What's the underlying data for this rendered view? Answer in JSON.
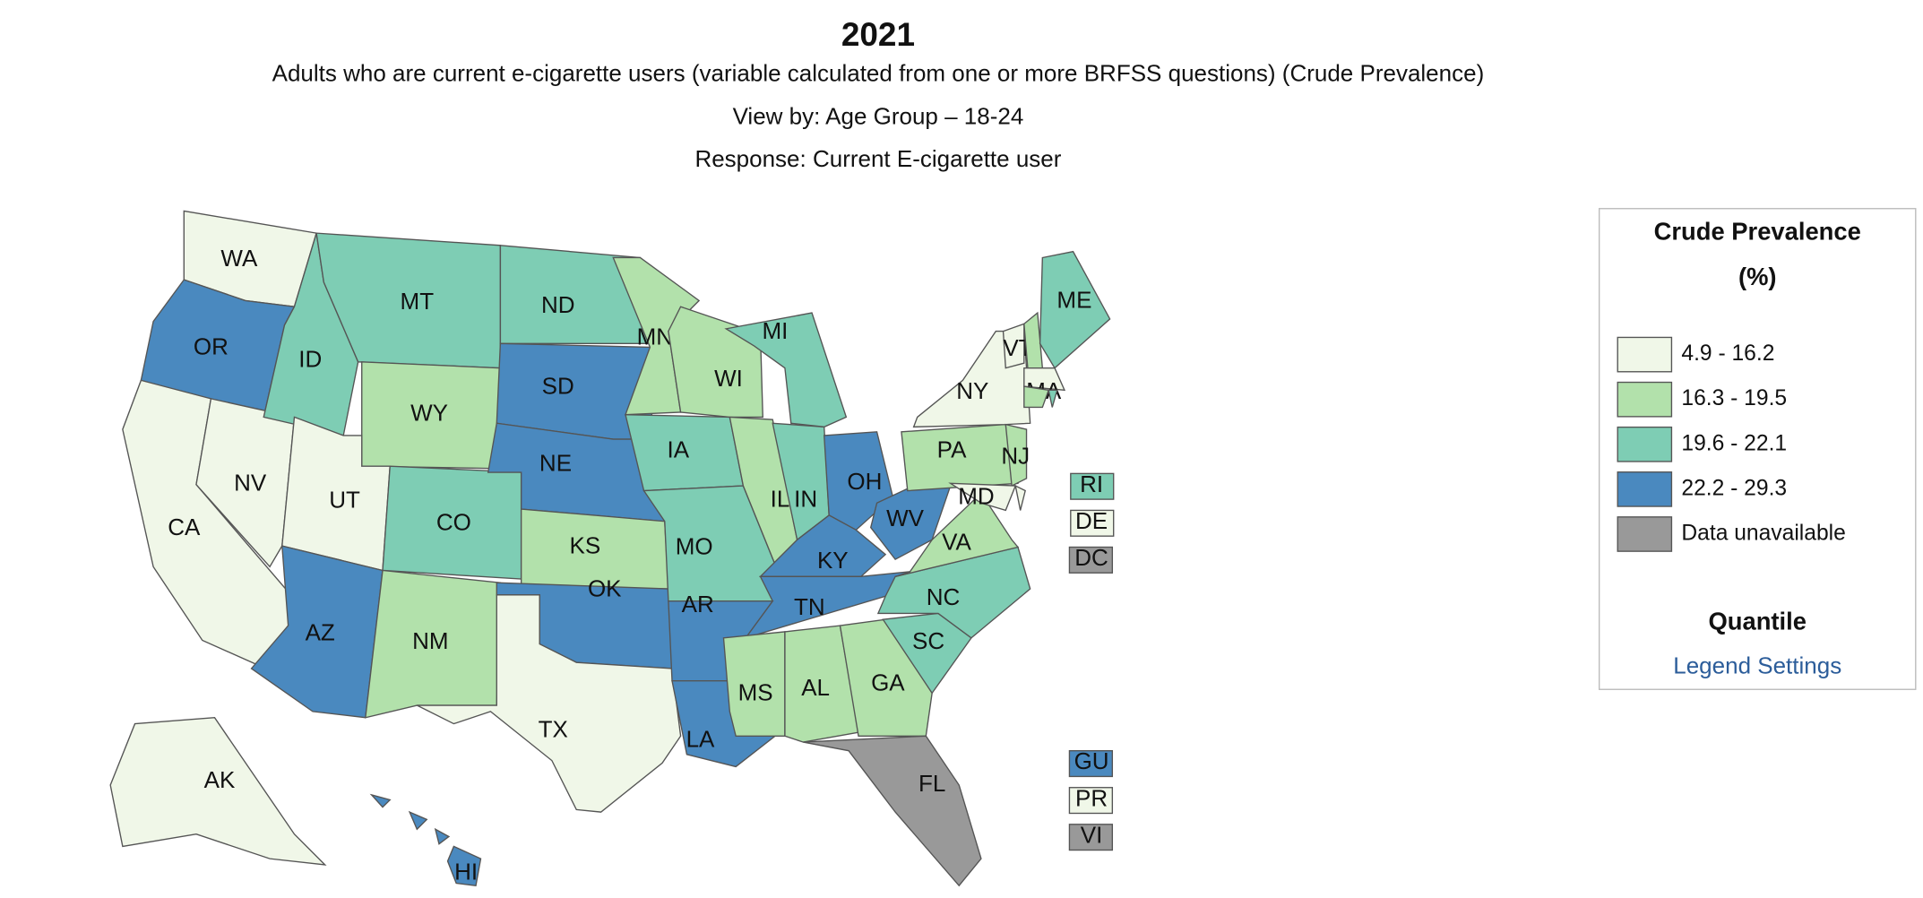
{
  "header": {
    "title": "2021",
    "subtitle": "Adults who are current e-cigarette users (variable calculated from one or more BRFSS questions) (Crude Prevalence)",
    "view_by": "View by: Age Group – 18-24",
    "response": "Response: Current E-cigarette user"
  },
  "map": {
    "states": [
      {
        "abbr": "WA",
        "class": 0
      },
      {
        "abbr": "OR",
        "class": 3
      },
      {
        "abbr": "CA",
        "class": 0
      },
      {
        "abbr": "NV",
        "class": 0
      },
      {
        "abbr": "ID",
        "class": 2
      },
      {
        "abbr": "MT",
        "class": 2
      },
      {
        "abbr": "WY",
        "class": 1
      },
      {
        "abbr": "UT",
        "class": 0
      },
      {
        "abbr": "CO",
        "class": 2
      },
      {
        "abbr": "AZ",
        "class": 3
      },
      {
        "abbr": "NM",
        "class": 1
      },
      {
        "abbr": "ND",
        "class": 2
      },
      {
        "abbr": "SD",
        "class": 3
      },
      {
        "abbr": "NE",
        "class": 3
      },
      {
        "abbr": "KS",
        "class": 1
      },
      {
        "abbr": "OK",
        "class": 3
      },
      {
        "abbr": "TX",
        "class": 0
      },
      {
        "abbr": "MN",
        "class": 1
      },
      {
        "abbr": "IA",
        "class": 2
      },
      {
        "abbr": "MO",
        "class": 2
      },
      {
        "abbr": "WI",
        "class": 1
      },
      {
        "abbr": "IL",
        "class": 1
      },
      {
        "abbr": "IN",
        "class": 2
      },
      {
        "abbr": "MI",
        "class": 2
      },
      {
        "abbr": "OH",
        "class": 3
      },
      {
        "abbr": "KY",
        "class": 3
      },
      {
        "abbr": "TN",
        "class": 3
      },
      {
        "abbr": "AR",
        "class": 3
      },
      {
        "abbr": "LA",
        "class": 3
      },
      {
        "abbr": "MS",
        "class": 1
      },
      {
        "abbr": "AL",
        "class": 1
      },
      {
        "abbr": "GA",
        "class": 1
      },
      {
        "abbr": "FL",
        "class": 4
      },
      {
        "abbr": "SC",
        "class": 2
      },
      {
        "abbr": "NC",
        "class": 2
      },
      {
        "abbr": "VA",
        "class": 1
      },
      {
        "abbr": "WV",
        "class": 3
      },
      {
        "abbr": "PA",
        "class": 1
      },
      {
        "abbr": "NY",
        "class": 0
      },
      {
        "abbr": "NJ",
        "class": 1
      },
      {
        "abbr": "MD",
        "class": 0
      },
      {
        "abbr": "DE",
        "class": 0
      },
      {
        "abbr": "VT",
        "class": 0
      },
      {
        "abbr": null,
        "class": 1
      },
      {
        "abbr": "ME",
        "class": 2
      },
      {
        "abbr": "MA",
        "class": 0
      },
      {
        "abbr": null,
        "class": 1
      },
      {
        "abbr": "RI",
        "class": 2
      },
      {
        "abbr": "AK",
        "class": 0
      },
      {
        "abbr": "HI",
        "class": 3
      }
    ],
    "territories": [
      {
        "abbr": "DC",
        "class": 4
      },
      {
        "abbr": "GU",
        "class": 3
      },
      {
        "abbr": "PR",
        "class": 0
      },
      {
        "abbr": "VI",
        "class": 4
      }
    ]
  },
  "legend": {
    "title_lines": [
      "Crude Prevalence",
      "(%)"
    ],
    "items": [
      {
        "label": "4.9 - 16.2",
        "color": "#f0f7e8"
      },
      {
        "label": "16.3 - 19.5",
        "color": "#b2e1ab"
      },
      {
        "label": "19.6 - 22.1",
        "color": "#7ecdb4"
      },
      {
        "label": "22.2 - 29.3",
        "color": "#4a89bf"
      },
      {
        "label": "Data unavailable",
        "color": "#999999"
      }
    ],
    "classification": "Quantile",
    "settings_link": "Legend Settings"
  }
}
